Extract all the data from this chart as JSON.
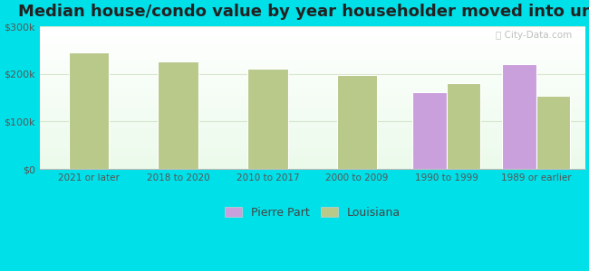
{
  "title": "Median house/condo value by year householder moved into unit",
  "categories": [
    "2021 or later",
    "2018 to 2020",
    "2010 to 2017",
    "2000 to 2009",
    "1990 to 1999",
    "1989 or earlier"
  ],
  "pierre_part_values": [
    null,
    null,
    null,
    null,
    162000,
    220000
  ],
  "louisiana_values": [
    245000,
    227000,
    212000,
    197000,
    180000,
    155000
  ],
  "pierre_part_color": "#c9a0dc",
  "louisiana_color": "#b8c98a",
  "background_outer": "#00e0e8",
  "ylim": [
    0,
    300000
  ],
  "yticks": [
    0,
    100000,
    200000,
    300000
  ],
  "ytick_labels": [
    "$0",
    "$100k",
    "$200k",
    "$300k"
  ],
  "grid_color": "#d8e8d0",
  "single_bar_width": 0.45,
  "pair_bar_width": 0.38,
  "title_fontsize": 13,
  "legend_labels": [
    "Pierre Part",
    "Louisiana"
  ],
  "watermark": "City-Data.com"
}
